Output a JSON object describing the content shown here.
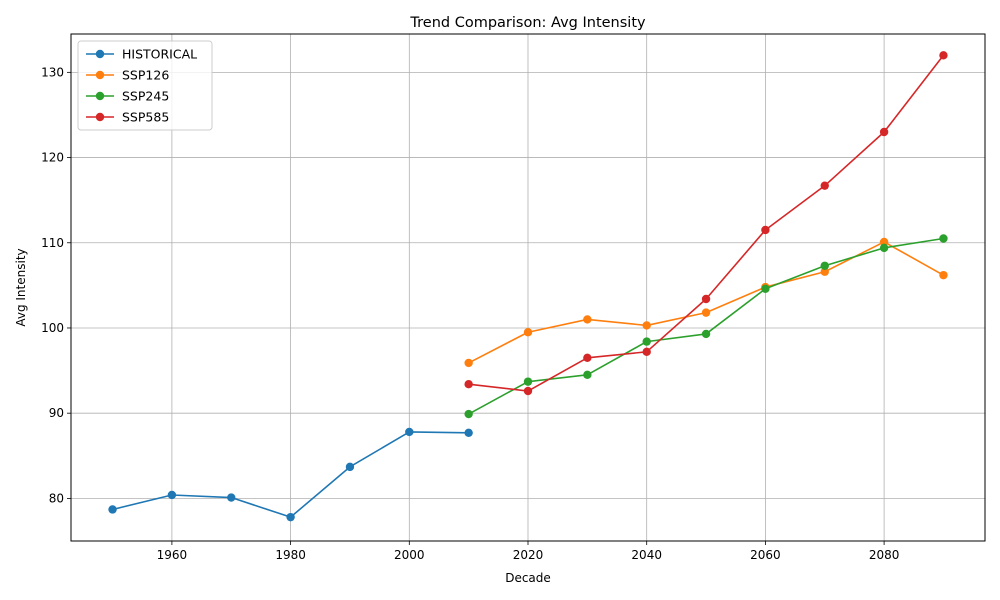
{
  "chart_data": {
    "type": "line",
    "title": "Trend Comparison: Avg Intensity",
    "xlabel": "Decade",
    "ylabel": "Avg Intensity",
    "xlim": [
      1943,
      2097
    ],
    "ylim": [
      75,
      134.5
    ],
    "x_ticks": [
      1960,
      1980,
      2000,
      2020,
      2040,
      2060,
      2080
    ],
    "y_ticks": [
      80,
      90,
      100,
      110,
      120,
      130
    ],
    "x_tick_labels": [
      "1960",
      "1980",
      "2000",
      "2020",
      "2040",
      "2060",
      "2080"
    ],
    "y_tick_labels": [
      "80",
      "90",
      "100",
      "110",
      "120",
      "130"
    ],
    "grid": true,
    "legend_position": "top-left",
    "series": [
      {
        "name": "HISTORICAL",
        "color": "#1f77b4",
        "x": [
          1950,
          1960,
          1970,
          1980,
          1990,
          2000,
          2010
        ],
        "values": [
          78.7,
          80.4,
          80.1,
          77.8,
          83.7,
          87.8,
          87.7
        ]
      },
      {
        "name": "SSP126",
        "color": "#ff7f0e",
        "x": [
          2010,
          2020,
          2030,
          2040,
          2050,
          2060,
          2070,
          2080,
          2090
        ],
        "values": [
          95.9,
          99.5,
          101.0,
          100.3,
          101.8,
          104.8,
          106.6,
          110.1,
          106.2
        ]
      },
      {
        "name": "SSP245",
        "color": "#2ca02c",
        "x": [
          2010,
          2020,
          2030,
          2040,
          2050,
          2060,
          2070,
          2080,
          2090
        ],
        "values": [
          89.9,
          93.7,
          94.5,
          98.4,
          99.3,
          104.6,
          107.3,
          109.4,
          110.5
        ]
      },
      {
        "name": "SSP585",
        "color": "#d62728",
        "x": [
          2010,
          2020,
          2030,
          2040,
          2050,
          2060,
          2070,
          2080,
          2090
        ],
        "values": [
          93.4,
          92.6,
          96.5,
          97.2,
          103.4,
          111.5,
          116.7,
          123.0,
          132.0
        ]
      }
    ]
  }
}
